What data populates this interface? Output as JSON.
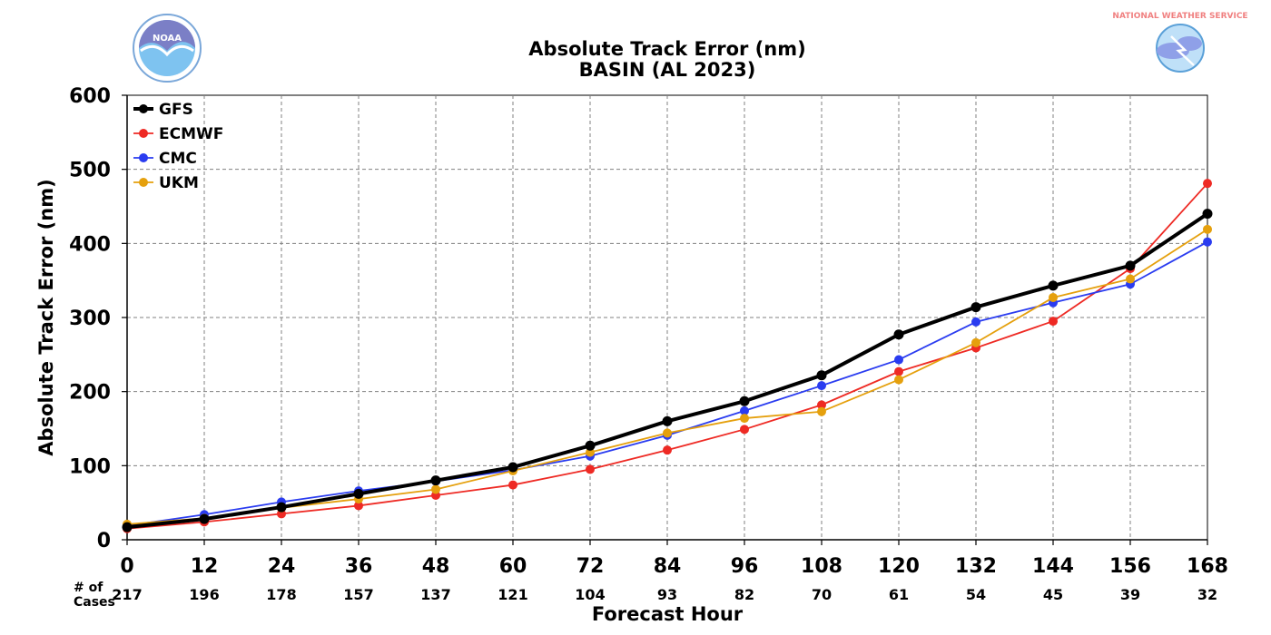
{
  "logos": {
    "left": {
      "name": "noaa-logo",
      "text": "NOAA",
      "colors": [
        "#7aa7d9",
        "#4b5fb0",
        "#9ec4ec"
      ]
    },
    "right": {
      "name": "national-weather-service-logo",
      "text": "NATIONAL WEATHER SERVICE",
      "colors": [
        "#f08080",
        "#5aa0d8",
        "#8fa0e8"
      ]
    }
  },
  "chart_data": {
    "type": "line",
    "title": "Absolute Track Error (nm)",
    "subtitle": "BASIN (AL 2023)",
    "xlabel": "Forecast Hour",
    "ylabel": "Absolute Track Error (nm)",
    "x": [
      0,
      12,
      24,
      36,
      48,
      60,
      72,
      84,
      96,
      108,
      120,
      132,
      144,
      156,
      168
    ],
    "xlim": [
      0,
      168
    ],
    "ylim": [
      0,
      600
    ],
    "yticks": [
      0,
      100,
      200,
      300,
      400,
      500,
      600
    ],
    "grid": true,
    "legend_position": "top-left",
    "cases_label": "# of\nCases",
    "cases": [
      217,
      196,
      178,
      157,
      137,
      121,
      104,
      93,
      82,
      70,
      61,
      54,
      45,
      39,
      32
    ],
    "series": [
      {
        "name": "GFS",
        "color": "#000000",
        "thick": true,
        "values": [
          17,
          28,
          44,
          62,
          80,
          98,
          127,
          160,
          187,
          222,
          277,
          314,
          343,
          370,
          440
        ]
      },
      {
        "name": "ECMWF",
        "color": "#ee2a24",
        "thick": false,
        "values": [
          15,
          24,
          35,
          46,
          60,
          74,
          95,
          121,
          149,
          182,
          227,
          259,
          295,
          366,
          481
        ]
      },
      {
        "name": "CMC",
        "color": "#2a3cf0",
        "thick": false,
        "values": [
          19,
          34,
          51,
          66,
          79,
          94,
          113,
          141,
          174,
          208,
          243,
          294,
          320,
          345,
          402
        ]
      },
      {
        "name": "UKM",
        "color": "#e5a00d",
        "thick": false,
        "values": [
          21,
          29,
          43,
          55,
          68,
          93,
          118,
          144,
          164,
          173,
          216,
          266,
          327,
          352,
          419
        ]
      }
    ]
  }
}
